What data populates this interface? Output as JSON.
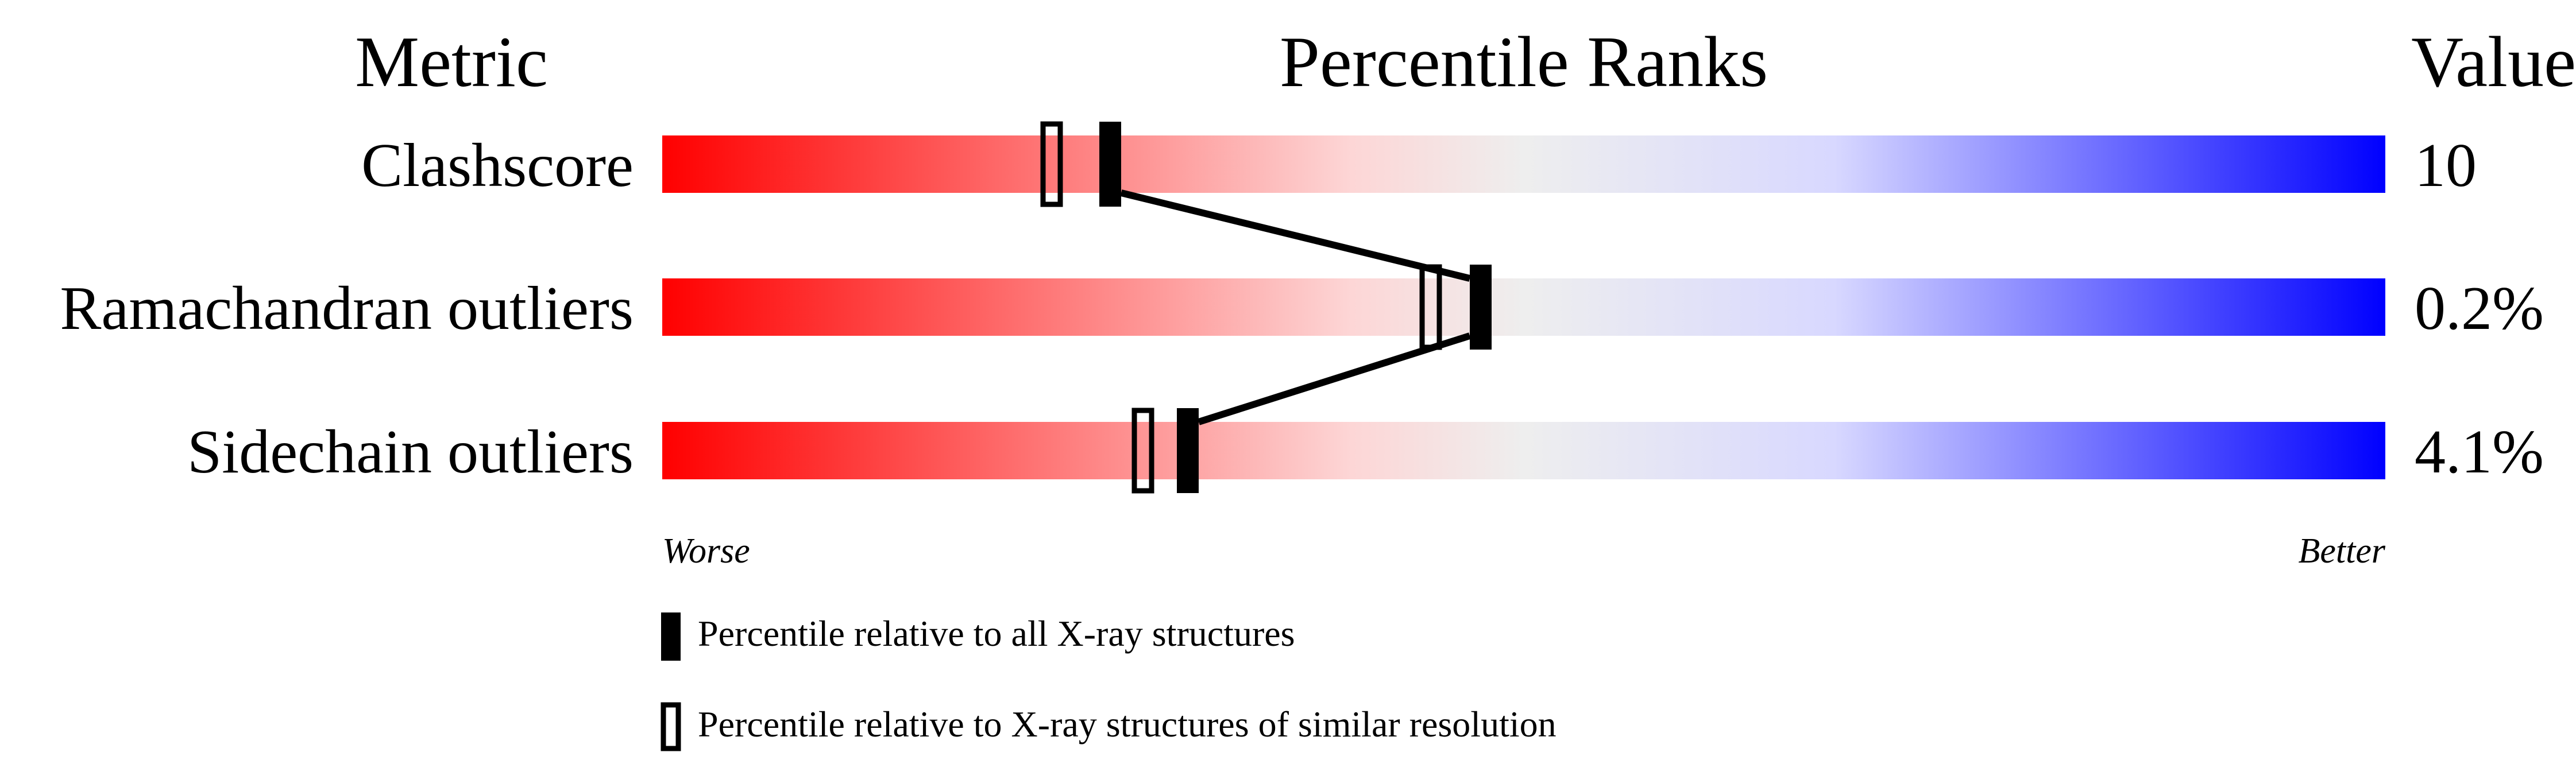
{
  "chart_data": {
    "type": "percentile-slider",
    "headers": {
      "metric": "Metric",
      "ranks": "Percentile Ranks",
      "value": "Value"
    },
    "xlim": [
      0,
      100
    ],
    "axis_labels": {
      "left": "Worse",
      "right": "Better"
    },
    "gradient_colors": [
      "#ff0000",
      "#fdd6d6",
      "#eeeeee",
      "#d8d8ff",
      "#0000ff"
    ],
    "metrics": [
      {
        "name": "Clashscore",
        "value": "10",
        "percentile_all": 26,
        "percentile_similar": 22.6
      },
      {
        "name": "Ramachandran outliers",
        "value": "0.2%",
        "percentile_all": 47.5,
        "percentile_similar": 44.6
      },
      {
        "name": "Sidechain outliers",
        "value": "4.1%",
        "percentile_all": 30.5,
        "percentile_similar": 27.9
      }
    ],
    "legend": [
      {
        "marker": "filled",
        "label": "Percentile relative to all X-ray structures"
      },
      {
        "marker": "open",
        "label": "Percentile relative to X-ray structures of similar resolution"
      }
    ]
  }
}
